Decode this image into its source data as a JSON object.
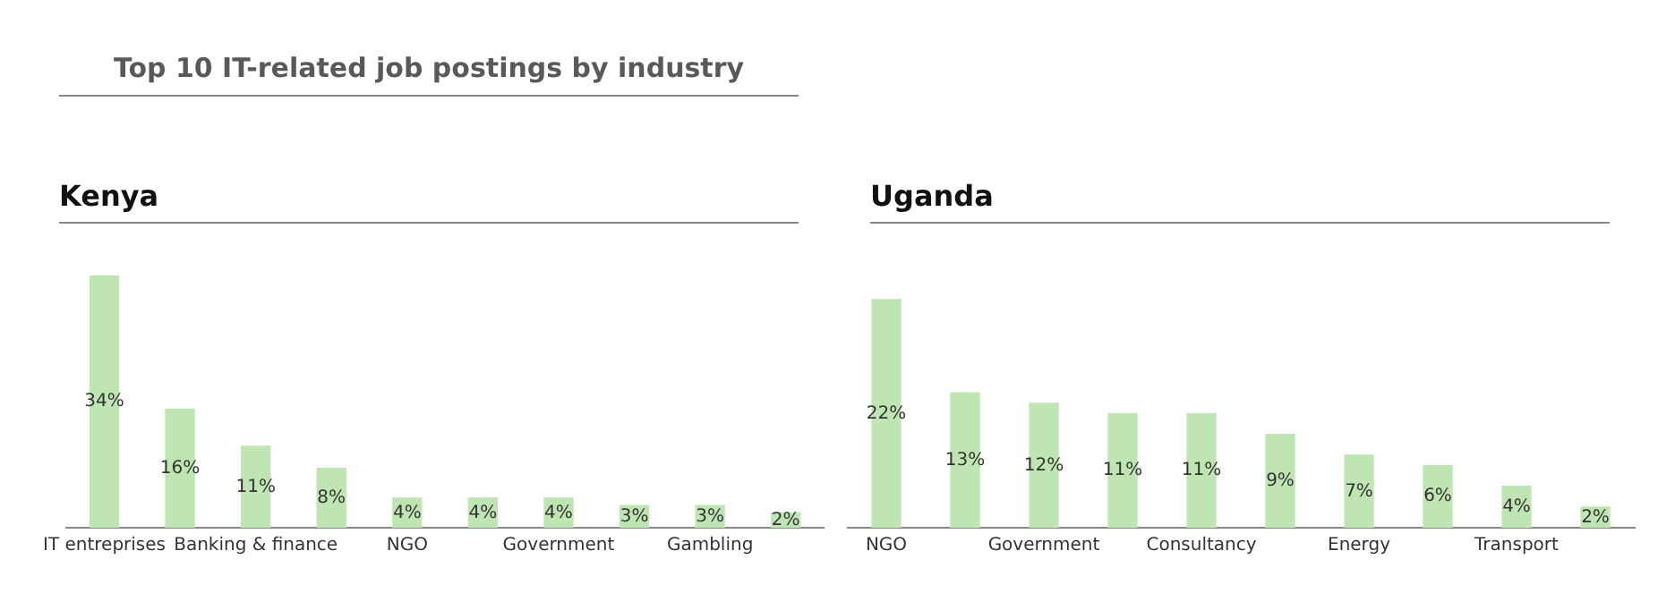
{
  "chart_data": [
    {
      "type": "bar",
      "title": "Top 10 IT-related job postings by industry",
      "subtitle": "Kenya",
      "categories": [
        "IT entreprises",
        null,
        "Banking & finance",
        null,
        "NGO",
        null,
        "Government",
        null,
        "Gambling",
        null
      ],
      "values": [
        34,
        16,
        11,
        8,
        4,
        4,
        4,
        3,
        3,
        2
      ],
      "value_labels": [
        "34%",
        "16%",
        "11%",
        "8%",
        "4%",
        "4%",
        "4%",
        "3%",
        "3%",
        "2%"
      ],
      "color": "#bfe5b2"
    },
    {
      "type": "bar",
      "title": "Uganda",
      "categories": [
        "NGO",
        null,
        "Government",
        null,
        "Consultancy",
        null,
        "Energy",
        null,
        "Transport",
        null
      ],
      "values": [
        22,
        13,
        12,
        11,
        11,
        9,
        7,
        6,
        4,
        2
      ],
      "value_labels": [
        "22%",
        "13%",
        "12%",
        "11%",
        "11%",
        "9%",
        "7%",
        "6%",
        "4%",
        "2%"
      ],
      "color": "#bfe5b2"
    }
  ]
}
